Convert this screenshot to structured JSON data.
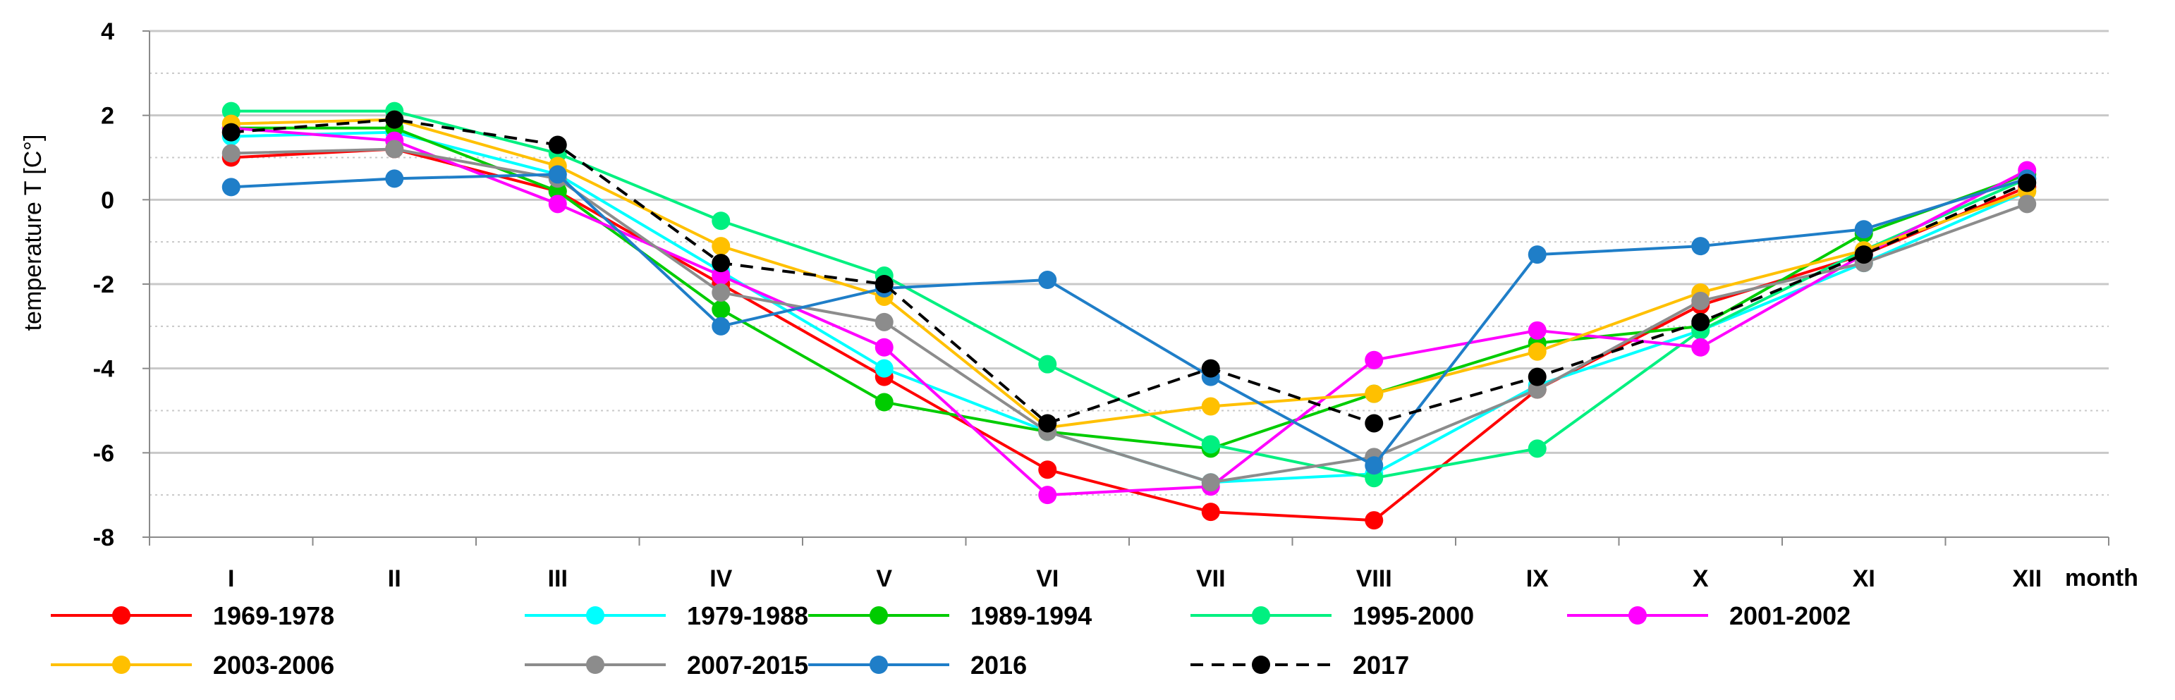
{
  "chart_data": {
    "type": "line",
    "title": "",
    "xlabel": "month",
    "ylabel": "temperature T [C°]",
    "categories": [
      "I",
      "II",
      "III",
      "IV",
      "V",
      "VI",
      "VII",
      "VIII",
      "IX",
      "X",
      "XI",
      "XII"
    ],
    "ylim": [
      -8,
      4
    ],
    "yticks": [
      -8,
      -6,
      -4,
      -2,
      0,
      2,
      4
    ],
    "grid": "horizontal",
    "legend_position": "bottom",
    "series": [
      {
        "name": "1969-1978",
        "color": "#ff0000",
        "dashed": false,
        "values": [
          1.0,
          1.2,
          0.2,
          -2.0,
          -4.2,
          -6.4,
          -7.4,
          -7.6,
          -4.5,
          -2.5,
          -1.3,
          0.3
        ]
      },
      {
        "name": "1979-1988",
        "color": "#00ffff",
        "dashed": false,
        "values": [
          1.5,
          1.6,
          0.6,
          -1.7,
          -4.0,
          -5.5,
          -6.7,
          -6.5,
          -4.4,
          -3.1,
          -1.5,
          0.2
        ]
      },
      {
        "name": "1989-1994",
        "color": "#00cc00",
        "dashed": false,
        "values": [
          1.7,
          1.7,
          0.2,
          -2.6,
          -4.8,
          -5.5,
          -5.9,
          -4.6,
          -3.4,
          -3.0,
          -0.8,
          0.6
        ]
      },
      {
        "name": "1995-2000",
        "color": "#00f080",
        "dashed": false,
        "values": [
          2.1,
          2.1,
          1.1,
          -0.5,
          -1.8,
          -3.9,
          -5.8,
          -6.6,
          -5.9,
          -3.1,
          -1.2,
          0.5
        ]
      },
      {
        "name": "2001-2002",
        "color": "#ff00ff",
        "dashed": false,
        "values": [
          1.7,
          1.4,
          -0.1,
          -1.8,
          -3.5,
          -7.0,
          -6.8,
          -3.8,
          -3.1,
          -3.5,
          -1.3,
          0.7
        ]
      },
      {
        "name": "2003-2006",
        "color": "#ffc000",
        "dashed": false,
        "values": [
          1.8,
          1.9,
          0.8,
          -1.1,
          -2.3,
          -5.4,
          -4.9,
          -4.6,
          -3.6,
          -2.2,
          -1.2,
          0.2
        ]
      },
      {
        "name": "2007-2015",
        "color": "#8c8c8c",
        "dashed": false,
        "values": [
          1.1,
          1.2,
          0.5,
          -2.2,
          -2.9,
          -5.5,
          -6.7,
          -6.1,
          -4.5,
          -2.4,
          -1.5,
          -0.1
        ]
      },
      {
        "name": "2016",
        "color": "#1f7ec8",
        "dashed": false,
        "values": [
          0.3,
          0.5,
          0.6,
          -3.0,
          -2.1,
          -1.9,
          -4.2,
          -6.3,
          -1.3,
          -1.1,
          -0.7,
          0.5
        ]
      },
      {
        "name": "2017",
        "color": "#000000",
        "dashed": true,
        "values": [
          1.6,
          1.9,
          1.3,
          -1.5,
          -2.0,
          -5.3,
          -4.0,
          -5.3,
          -4.2,
          -2.9,
          -1.3,
          0.4
        ]
      }
    ]
  }
}
